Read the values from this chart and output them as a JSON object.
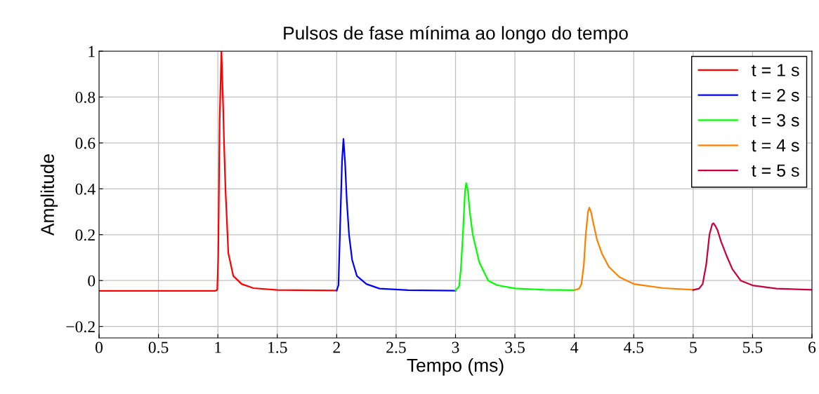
{
  "chart_data": {
    "type": "line",
    "title": "Pulsos de fase mínima ao longo do tempo",
    "xlabel": "Tempo (ms)",
    "ylabel": "Amplitude",
    "xlim": [
      0,
      6
    ],
    "ylim": [
      -0.25,
      1
    ],
    "xticks": [
      0,
      0.5,
      1,
      1.5,
      2,
      2.5,
      3,
      3.5,
      4,
      4.5,
      5,
      5.5,
      6
    ],
    "yticks": [
      {
        "value": -0.2,
        "label": "−0.2"
      },
      0,
      0.2,
      0.4,
      0.6,
      0.8,
      1
    ],
    "grid": true,
    "legend": "top right",
    "marker": "none",
    "line_style": "solid",
    "series": [
      {
        "name": "t = 1 s",
        "color": "#ff0000",
        "x": [
          0,
          0.98,
          0.995,
          1.003,
          1.015,
          1.03,
          1.045,
          1.052,
          1.064,
          1.088,
          1.13,
          1.2,
          1.3,
          1.5,
          2.0
        ],
        "values": [
          -0.045,
          -0.045,
          -0.04,
          0.1,
          0.7,
          1.0,
          0.75,
          0.6,
          0.4,
          0.12,
          0.02,
          -0.015,
          -0.033,
          -0.041,
          -0.043
        ]
      },
      {
        "name": "t = 2 s",
        "color": "#0000ff",
        "x": [
          2.0,
          2.015,
          2.027,
          2.045,
          2.057,
          2.07,
          2.085,
          2.104,
          2.13,
          2.17,
          2.25,
          2.36,
          2.6,
          3.0
        ],
        "values": [
          -0.043,
          -0.02,
          0.2,
          0.52,
          0.618,
          0.52,
          0.35,
          0.2,
          0.09,
          0.02,
          -0.015,
          -0.035,
          -0.042,
          -0.044
        ]
      },
      {
        "name": "t = 3 s",
        "color": "#00ff00",
        "x": [
          3.0,
          3.03,
          3.045,
          3.062,
          3.08,
          3.09,
          3.105,
          3.12,
          3.145,
          3.2,
          3.275,
          3.35,
          3.5,
          3.75,
          4.0
        ],
        "values": [
          -0.043,
          -0.025,
          0.05,
          0.2,
          0.39,
          0.425,
          0.39,
          0.3,
          0.2,
          0.08,
          0.0,
          -0.02,
          -0.034,
          -0.04,
          -0.042
        ]
      },
      {
        "name": "t = 4 s",
        "color": "#ff8000",
        "x": [
          4.0,
          4.04,
          4.06,
          4.08,
          4.096,
          4.115,
          4.126,
          4.14,
          4.16,
          4.19,
          4.23,
          4.29,
          4.38,
          4.5,
          4.75,
          5.0
        ],
        "values": [
          -0.042,
          -0.035,
          -0.015,
          0.07,
          0.2,
          0.3,
          0.318,
          0.3,
          0.25,
          0.18,
          0.12,
          0.06,
          0.015,
          -0.015,
          -0.033,
          -0.04
        ]
      },
      {
        "name": "t = 5 s",
        "color": "#c8003c",
        "x": [
          5.0,
          5.05,
          5.08,
          5.11,
          5.137,
          5.16,
          5.17,
          5.185,
          5.205,
          5.235,
          5.28,
          5.33,
          5.4,
          5.5,
          5.7,
          6.0
        ],
        "values": [
          -0.041,
          -0.035,
          -0.015,
          0.07,
          0.2,
          0.245,
          0.25,
          0.24,
          0.22,
          0.17,
          0.11,
          0.05,
          0.0,
          -0.021,
          -0.035,
          -0.04
        ]
      }
    ]
  }
}
